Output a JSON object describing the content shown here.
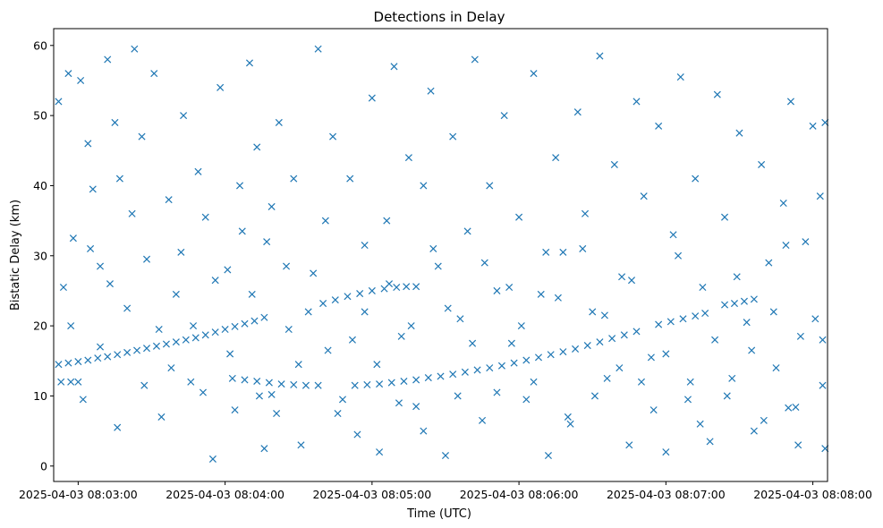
{
  "chart_data": {
    "type": "scatter",
    "title": "Detections in Delay",
    "xlabel": "Time (UTC)",
    "ylabel": "Bistatic Delay (km)",
    "x_is_datetime": true,
    "xlim": [
      "2025-04-03 08:02:50",
      "2025-04-03 08:08:06"
    ],
    "ylim": [
      -2.2,
      62.4
    ],
    "xticks": [
      "2025-04-03 08:03:00",
      "2025-04-03 08:04:00",
      "2025-04-03 08:05:00",
      "2025-04-03 08:06:00",
      "2025-04-03 08:07:00",
      "2025-04-03 08:08:00"
    ],
    "yticks": [
      0,
      10,
      20,
      30,
      40,
      50,
      60
    ],
    "marker": "x",
    "color": "#1f77b4",
    "grid": false,
    "series": [
      {
        "points": [
          [
            "08:02:52",
            14.5
          ],
          [
            "08:02:56",
            14.7
          ],
          [
            "08:03:00",
            14.9
          ],
          [
            "08:03:04",
            15.1
          ],
          [
            "08:03:08",
            15.4
          ],
          [
            "08:03:12",
            15.6
          ],
          [
            "08:03:16",
            15.9
          ],
          [
            "08:03:20",
            16.2
          ],
          [
            "08:03:24",
            16.5
          ],
          [
            "08:03:28",
            16.8
          ],
          [
            "08:03:32",
            17.1
          ],
          [
            "08:03:36",
            17.4
          ],
          [
            "08:03:40",
            17.7
          ],
          [
            "08:03:44",
            18.0
          ],
          [
            "08:03:48",
            18.3
          ],
          [
            "08:03:52",
            18.7
          ],
          [
            "08:03:56",
            19.1
          ],
          [
            "08:04:00",
            19.5
          ],
          [
            "08:04:04",
            19.9
          ],
          [
            "08:04:08",
            20.3
          ],
          [
            "08:04:12",
            20.7
          ],
          [
            "08:04:16",
            21.2
          ],
          [
            "08:04:03",
            12.5
          ],
          [
            "08:04:08",
            12.3
          ],
          [
            "08:04:13",
            12.1
          ],
          [
            "08:04:18",
            11.9
          ],
          [
            "08:04:23",
            11.7
          ],
          [
            "08:04:28",
            11.6
          ],
          [
            "08:04:33",
            11.5
          ],
          [
            "08:04:38",
            11.5
          ],
          [
            "08:04:14",
            10.0
          ],
          [
            "08:04:19",
            10.2
          ],
          [
            "08:04:40",
            23.2
          ],
          [
            "08:04:45",
            23.7
          ],
          [
            "08:04:50",
            24.2
          ],
          [
            "08:04:55",
            24.6
          ],
          [
            "08:05:00",
            25.0
          ],
          [
            "08:05:05",
            25.3
          ],
          [
            "08:05:10",
            25.5
          ],
          [
            "08:05:14",
            25.6
          ],
          [
            "08:05:18",
            25.6
          ],
          [
            "08:04:53",
            11.5
          ],
          [
            "08:04:58",
            11.6
          ],
          [
            "08:05:03",
            11.7
          ],
          [
            "08:05:08",
            11.9
          ],
          [
            "08:05:13",
            12.1
          ],
          [
            "08:05:18",
            12.3
          ],
          [
            "08:05:23",
            12.6
          ],
          [
            "08:05:28",
            12.8
          ],
          [
            "08:05:33",
            13.1
          ],
          [
            "08:05:38",
            13.4
          ],
          [
            "08:05:43",
            13.7
          ],
          [
            "08:05:48",
            14.0
          ],
          [
            "08:05:53",
            14.3
          ],
          [
            "08:05:58",
            14.7
          ],
          [
            "08:06:03",
            15.1
          ],
          [
            "08:06:08",
            15.5
          ],
          [
            "08:06:13",
            15.9
          ],
          [
            "08:06:18",
            16.3
          ],
          [
            "08:06:23",
            16.7
          ],
          [
            "08:06:28",
            17.2
          ],
          [
            "08:06:33",
            17.7
          ],
          [
            "08:06:38",
            18.2
          ],
          [
            "08:06:43",
            18.7
          ],
          [
            "08:06:48",
            19.2
          ],
          [
            "08:06:57",
            20.2
          ],
          [
            "08:07:02",
            20.6
          ],
          [
            "08:07:07",
            21.0
          ],
          [
            "08:07:12",
            21.4
          ],
          [
            "08:07:16",
            21.8
          ],
          [
            "08:07:24",
            23.0
          ],
          [
            "08:07:28",
            23.2
          ],
          [
            "08:07:32",
            23.5
          ],
          [
            "08:07:36",
            23.8
          ],
          [
            "08:02:53",
            12.0
          ],
          [
            "08:02:57",
            12.0
          ],
          [
            "08:03:00",
            12.0
          ],
          [
            "08:07:50",
            8.3
          ],
          [
            "08:07:53",
            8.4
          ],
          [
            "08:02:52",
            52.0
          ],
          [
            "08:02:56",
            56.0
          ],
          [
            "08:02:58",
            32.5
          ],
          [
            "08:03:01",
            55.0
          ],
          [
            "08:03:04",
            46.0
          ],
          [
            "08:03:06",
            39.5
          ],
          [
            "08:03:09",
            28.5
          ],
          [
            "08:03:12",
            58.0
          ],
          [
            "08:03:15",
            49.0
          ],
          [
            "08:03:17",
            41.0
          ],
          [
            "08:03:20",
            22.5
          ],
          [
            "08:03:23",
            59.5
          ],
          [
            "08:03:26",
            47.0
          ],
          [
            "08:03:28",
            29.5
          ],
          [
            "08:03:31",
            56.0
          ],
          [
            "08:03:34",
            7.0
          ],
          [
            "08:03:37",
            38.0
          ],
          [
            "08:03:40",
            24.5
          ],
          [
            "08:03:43",
            50.0
          ],
          [
            "08:03:46",
            12.0
          ],
          [
            "08:03:49",
            42.0
          ],
          [
            "08:03:52",
            35.5
          ],
          [
            "08:03:55",
            1.0
          ],
          [
            "08:03:58",
            54.0
          ],
          [
            "08:04:01",
            28.0
          ],
          [
            "08:04:04",
            8.0
          ],
          [
            "08:04:07",
            33.5
          ],
          [
            "08:04:10",
            57.5
          ],
          [
            "08:04:13",
            45.5
          ],
          [
            "08:04:16",
            2.5
          ],
          [
            "08:04:19",
            37.0
          ],
          [
            "08:04:22",
            49.0
          ],
          [
            "08:04:25",
            28.5
          ],
          [
            "08:04:28",
            41.0
          ],
          [
            "08:04:31",
            3.0
          ],
          [
            "08:04:34",
            22.0
          ],
          [
            "08:04:38",
            59.5
          ],
          [
            "08:04:41",
            35.0
          ],
          [
            "08:04:44",
            47.0
          ],
          [
            "08:04:48",
            9.5
          ],
          [
            "08:04:51",
            41.0
          ],
          [
            "08:04:54",
            4.5
          ],
          [
            "08:04:57",
            31.5
          ],
          [
            "08:05:00",
            52.5
          ],
          [
            "08:05:03",
            2.0
          ],
          [
            "08:05:06",
            35.0
          ],
          [
            "08:05:09",
            57.0
          ],
          [
            "08:05:12",
            18.5
          ],
          [
            "08:05:15",
            44.0
          ],
          [
            "08:05:18",
            8.5
          ],
          [
            "08:05:21",
            40.0
          ],
          [
            "08:05:24",
            53.5
          ],
          [
            "08:05:27",
            28.5
          ],
          [
            "08:05:30",
            1.5
          ],
          [
            "08:05:33",
            47.0
          ],
          [
            "08:05:36",
            21.0
          ],
          [
            "08:05:39",
            33.5
          ],
          [
            "08:05:42",
            58.0
          ],
          [
            "08:05:45",
            6.5
          ],
          [
            "08:05:48",
            40.0
          ],
          [
            "08:05:51",
            25.0
          ],
          [
            "08:05:54",
            50.0
          ],
          [
            "08:05:57",
            17.5
          ],
          [
            "08:06:00",
            35.5
          ],
          [
            "08:06:03",
            9.5
          ],
          [
            "08:06:06",
            56.0
          ],
          [
            "08:06:09",
            24.5
          ],
          [
            "08:06:12",
            1.5
          ],
          [
            "08:06:15",
            44.0
          ],
          [
            "08:06:18",
            30.5
          ],
          [
            "08:06:21",
            6.0
          ],
          [
            "08:06:24",
            50.5
          ],
          [
            "08:06:27",
            36.0
          ],
          [
            "08:06:30",
            22.0
          ],
          [
            "08:06:33",
            58.5
          ],
          [
            "08:06:36",
            12.5
          ],
          [
            "08:06:39",
            43.0
          ],
          [
            "08:06:42",
            27.0
          ],
          [
            "08:06:45",
            3.0
          ],
          [
            "08:06:48",
            52.0
          ],
          [
            "08:06:51",
            38.5
          ],
          [
            "08:06:54",
            15.5
          ],
          [
            "08:06:57",
            48.5
          ],
          [
            "08:07:00",
            2.0
          ],
          [
            "08:07:03",
            33.0
          ],
          [
            "08:07:06",
            55.5
          ],
          [
            "08:07:09",
            9.5
          ],
          [
            "08:07:12",
            41.0
          ],
          [
            "08:07:15",
            25.5
          ],
          [
            "08:07:18",
            3.5
          ],
          [
            "08:07:21",
            53.0
          ],
          [
            "08:07:24",
            35.5
          ],
          [
            "08:07:27",
            12.5
          ],
          [
            "08:07:30",
            47.5
          ],
          [
            "08:07:33",
            20.5
          ],
          [
            "08:07:36",
            5.0
          ],
          [
            "08:07:39",
            43.0
          ],
          [
            "08:07:42",
            29.0
          ],
          [
            "08:07:45",
            14.0
          ],
          [
            "08:07:48",
            37.5
          ],
          [
            "08:07:51",
            52.0
          ],
          [
            "08:07:54",
            3.0
          ],
          [
            "08:07:57",
            32.0
          ],
          [
            "08:08:00",
            48.5
          ],
          [
            "08:08:03",
            38.5
          ],
          [
            "08:08:04",
            11.5
          ],
          [
            "08:08:05",
            2.5
          ],
          [
            "08:08:05",
            49.0
          ],
          [
            "08:02:54",
            25.5
          ],
          [
            "08:02:57",
            20.0
          ],
          [
            "08:03:02",
            9.5
          ],
          [
            "08:03:05",
            31.0
          ],
          [
            "08:03:09",
            17.0
          ],
          [
            "08:03:13",
            26.0
          ],
          [
            "08:03:16",
            5.5
          ],
          [
            "08:03:22",
            36.0
          ],
          [
            "08:03:27",
            11.5
          ],
          [
            "08:03:33",
            19.5
          ],
          [
            "08:03:38",
            14.0
          ],
          [
            "08:03:42",
            30.5
          ],
          [
            "08:03:47",
            20.0
          ],
          [
            "08:03:51",
            10.5
          ],
          [
            "08:03:56",
            26.5
          ],
          [
            "08:04:02",
            16.0
          ],
          [
            "08:04:06",
            40.0
          ],
          [
            "08:04:11",
            24.5
          ],
          [
            "08:04:17",
            32.0
          ],
          [
            "08:04:21",
            7.5
          ],
          [
            "08:04:26",
            19.5
          ],
          [
            "08:04:30",
            14.5
          ],
          [
            "08:04:36",
            27.5
          ],
          [
            "08:04:42",
            16.5
          ],
          [
            "08:04:46",
            7.5
          ],
          [
            "08:04:52",
            18.0
          ],
          [
            "08:04:57",
            22.0
          ],
          [
            "08:05:02",
            14.5
          ],
          [
            "08:05:07",
            26.0
          ],
          [
            "08:05:11",
            9.0
          ],
          [
            "08:05:16",
            20.0
          ],
          [
            "08:05:21",
            5.0
          ],
          [
            "08:05:25",
            31.0
          ],
          [
            "08:05:31",
            22.5
          ],
          [
            "08:05:35",
            10.0
          ],
          [
            "08:05:41",
            17.5
          ],
          [
            "08:05:46",
            29.0
          ],
          [
            "08:05:51",
            10.5
          ],
          [
            "08:05:56",
            25.5
          ],
          [
            "08:06:01",
            20.0
          ],
          [
            "08:06:06",
            12.0
          ],
          [
            "08:06:11",
            30.5
          ],
          [
            "08:06:16",
            24.0
          ],
          [
            "08:06:20",
            7.0
          ],
          [
            "08:06:26",
            31.0
          ],
          [
            "08:06:31",
            10.0
          ],
          [
            "08:06:35",
            21.5
          ],
          [
            "08:06:41",
            14.0
          ],
          [
            "08:06:46",
            26.5
          ],
          [
            "08:06:50",
            12.0
          ],
          [
            "08:06:55",
            8.0
          ],
          [
            "08:07:00",
            16.0
          ],
          [
            "08:07:05",
            30.0
          ],
          [
            "08:07:10",
            12.0
          ],
          [
            "08:07:14",
            6.0
          ],
          [
            "08:07:20",
            18.0
          ],
          [
            "08:07:25",
            10.0
          ],
          [
            "08:07:29",
            27.0
          ],
          [
            "08:07:35",
            16.5
          ],
          [
            "08:07:40",
            6.5
          ],
          [
            "08:07:44",
            22.0
          ],
          [
            "08:07:49",
            31.5
          ],
          [
            "08:07:55",
            18.5
          ],
          [
            "08:08:01",
            21.0
          ],
          [
            "08:08:04",
            18.0
          ]
        ]
      }
    ]
  }
}
